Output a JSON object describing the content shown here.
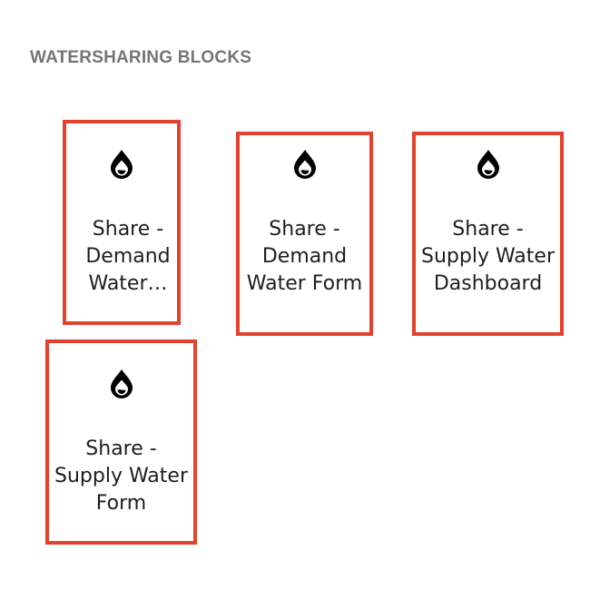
{
  "section": {
    "title": "WATERSHARING BLOCKS"
  },
  "blocks": [
    {
      "icon": "water-drop-icon",
      "lines": [
        "Share -",
        "Demand",
        "Water…"
      ]
    },
    {
      "icon": "water-drop-icon",
      "lines": [
        "Share -",
        "Demand",
        "Water Form"
      ]
    },
    {
      "icon": "water-drop-icon",
      "lines": [
        "Share -",
        "Supply Water",
        "Dashboard"
      ]
    },
    {
      "icon": "water-drop-icon",
      "lines": [
        "Share -",
        "Supply Water",
        "Form"
      ]
    }
  ],
  "colors": {
    "highlight_border": "#e2412d",
    "title_text": "#757575",
    "label_text": "#1e1e1e"
  }
}
